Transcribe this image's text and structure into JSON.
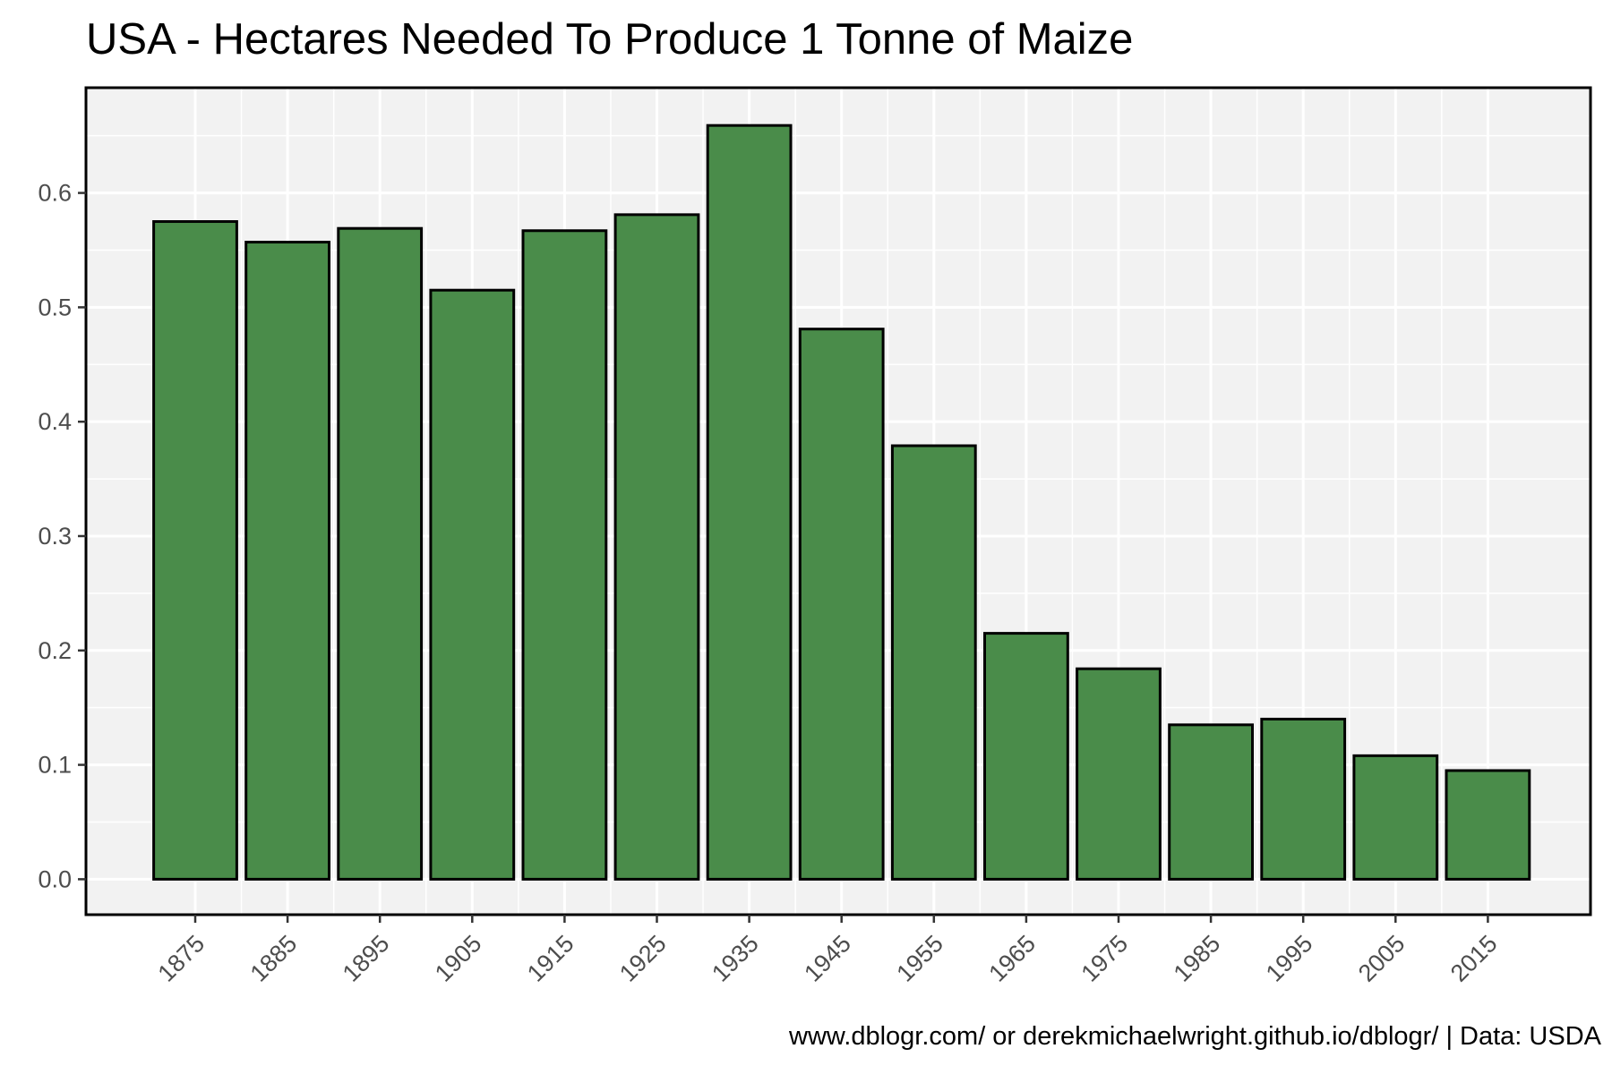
{
  "chart_data": {
    "type": "bar",
    "title": "USA - Hectares Needed To Produce 1 Tonne of Maize",
    "caption": "www.dblogr.com/ or derekmichaelwright.github.io/dblogr/ | Data: USDA",
    "xlabel": "",
    "ylabel": "",
    "categories": [
      "1875",
      "1885",
      "1895",
      "1905",
      "1915",
      "1925",
      "1935",
      "1945",
      "1955",
      "1965",
      "1975",
      "1985",
      "1995",
      "2005",
      "2015"
    ],
    "values": [
      0.575,
      0.557,
      0.569,
      0.515,
      0.567,
      0.581,
      0.659,
      0.481,
      0.379,
      0.215,
      0.184,
      0.135,
      0.14,
      0.108,
      0.095
    ],
    "ylim": [
      -0.031,
      0.692
    ],
    "y_ticks": [
      "0.0",
      "0.1",
      "0.2",
      "0.3",
      "0.4",
      "0.5",
      "0.6"
    ],
    "grid": true,
    "legend": "none",
    "colors": {
      "bar_fill": "#4a8c4a",
      "bar_stroke": "#000000",
      "panel_background": "#f2f2f2",
      "grid": "#ffffff"
    }
  }
}
